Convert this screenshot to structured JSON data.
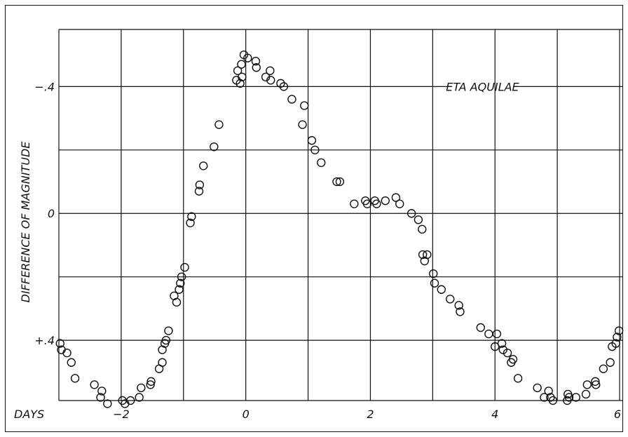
{
  "chart_data": {
    "type": "scatter",
    "annotation": "ETA AQUILAE",
    "xlabel": "DAYS",
    "ylabel": "DIFFERENCE OF MAGNITUDE",
    "xlim": [
      -3.0,
      6.0
    ],
    "ylim": [
      0.59,
      -0.58
    ],
    "y_inverted": true,
    "grid": true,
    "x_ticks": [
      {
        "value": -2,
        "label": "−2"
      },
      {
        "value": 0,
        "label": "0"
      },
      {
        "value": 2,
        "label": "2"
      },
      {
        "value": 4,
        "label": "4"
      },
      {
        "value": 6,
        "label": "6"
      }
    ],
    "y_ticks": [
      {
        "value": -0.4,
        "label": "−.4"
      },
      {
        "value": 0,
        "label": "0"
      },
      {
        "value": 0.4,
        "label": "+.4"
      }
    ],
    "x_grid": [
      -2,
      -1,
      0,
      1,
      2,
      3,
      4,
      5,
      6
    ],
    "y_grid": [
      -0.6,
      -0.4,
      -0.2,
      0,
      0.2,
      0.4,
      0.6
    ],
    "points": [
      [
        -2.98,
        0.41
      ],
      [
        -2.96,
        0.43
      ],
      [
        -2.87,
        0.44
      ],
      [
        -2.8,
        0.47
      ],
      [
        -2.74,
        0.52
      ],
      [
        -2.43,
        0.54
      ],
      [
        -2.33,
        0.58
      ],
      [
        -2.31,
        0.56
      ],
      [
        -2.22,
        0.6
      ],
      [
        -1.98,
        0.59
      ],
      [
        -1.94,
        0.6
      ],
      [
        -1.85,
        0.59
      ],
      [
        -1.71,
        0.58
      ],
      [
        -1.68,
        0.55
      ],
      [
        -1.53,
        0.54
      ],
      [
        -1.52,
        0.53
      ],
      [
        -1.39,
        0.49
      ],
      [
        -1.34,
        0.47
      ],
      [
        -1.34,
        0.43
      ],
      [
        -1.3,
        0.41
      ],
      [
        -1.28,
        0.4
      ],
      [
        -1.24,
        0.37
      ],
      [
        -1.15,
        0.26
      ],
      [
        -1.11,
        0.28
      ],
      [
        -1.07,
        0.24
      ],
      [
        -1.05,
        0.22
      ],
      [
        -1.03,
        0.2
      ],
      [
        -0.98,
        0.17
      ],
      [
        -0.89,
        0.03
      ],
      [
        -0.87,
        0.01
      ],
      [
        -0.75,
        -0.07
      ],
      [
        -0.74,
        -0.09
      ],
      [
        -0.68,
        -0.15
      ],
      [
        -0.51,
        -0.21
      ],
      [
        -0.43,
        -0.28
      ],
      [
        -0.15,
        -0.42
      ],
      [
        -0.13,
        -0.45
      ],
      [
        -0.09,
        -0.41
      ],
      [
        -0.07,
        -0.47
      ],
      [
        -0.06,
        -0.43
      ],
      [
        -0.03,
        -0.5
      ],
      [
        0.03,
        -0.49
      ],
      [
        0.16,
        -0.48
      ],
      [
        0.17,
        -0.46
      ],
      [
        0.32,
        -0.43
      ],
      [
        0.39,
        -0.45
      ],
      [
        0.4,
        -0.42
      ],
      [
        0.56,
        -0.41
      ],
      [
        0.61,
        -0.4
      ],
      [
        0.74,
        -0.36
      ],
      [
        0.91,
        -0.28
      ],
      [
        0.94,
        -0.34
      ],
      [
        1.06,
        -0.23
      ],
      [
        1.11,
        -0.2
      ],
      [
        1.21,
        -0.16
      ],
      [
        1.46,
        -0.1
      ],
      [
        1.51,
        -0.1
      ],
      [
        1.74,
        -0.03
      ],
      [
        1.92,
        -0.04
      ],
      [
        1.95,
        -0.03
      ],
      [
        2.07,
        -0.04
      ],
      [
        2.1,
        -0.03
      ],
      [
        2.24,
        -0.04
      ],
      [
        2.41,
        -0.05
      ],
      [
        2.47,
        -0.03
      ],
      [
        2.66,
        0.0
      ],
      [
        2.77,
        0.02
      ],
      [
        2.83,
        0.05
      ],
      [
        2.84,
        0.13
      ],
      [
        2.87,
        0.15
      ],
      [
        2.91,
        0.13
      ],
      [
        3.01,
        0.19
      ],
      [
        3.03,
        0.22
      ],
      [
        3.14,
        0.24
      ],
      [
        3.28,
        0.27
      ],
      [
        3.42,
        0.29
      ],
      [
        3.44,
        0.31
      ],
      [
        3.77,
        0.36
      ],
      [
        3.9,
        0.38
      ],
      [
        4.0,
        0.42
      ],
      [
        4.03,
        0.38
      ],
      [
        4.11,
        0.41
      ],
      [
        4.13,
        0.43
      ],
      [
        4.2,
        0.44
      ],
      [
        4.26,
        0.47
      ],
      [
        4.29,
        0.46
      ],
      [
        4.37,
        0.52
      ],
      [
        4.68,
        0.55
      ],
      [
        4.79,
        0.58
      ],
      [
        4.86,
        0.56
      ],
      [
        4.89,
        0.58
      ],
      [
        4.93,
        0.59
      ],
      [
        5.16,
        0.59
      ],
      [
        5.17,
        0.57
      ],
      [
        5.19,
        0.58
      ],
      [
        5.3,
        0.58
      ],
      [
        5.46,
        0.57
      ],
      [
        5.48,
        0.54
      ],
      [
        5.61,
        0.53
      ],
      [
        5.62,
        0.54
      ],
      [
        5.74,
        0.49
      ],
      [
        5.85,
        0.47
      ],
      [
        5.88,
        0.42
      ],
      [
        5.94,
        0.41
      ],
      [
        5.96,
        0.39
      ],
      [
        5.99,
        0.37
      ]
    ]
  }
}
